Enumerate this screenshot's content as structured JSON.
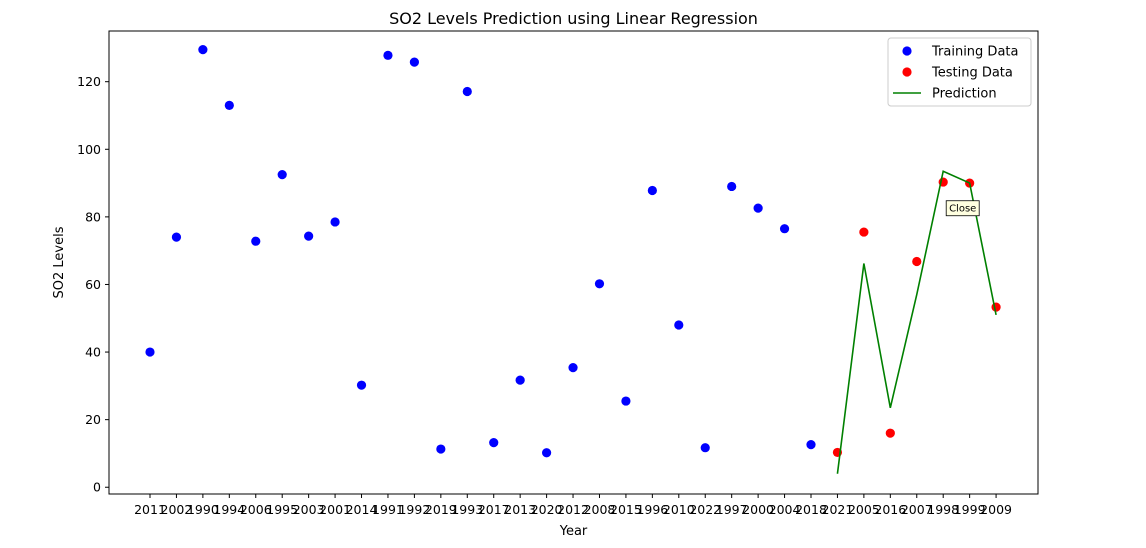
{
  "chart_data": {
    "type": "scatter",
    "title": "SO2 Levels Prediction using Linear Regression",
    "xlabel": "Year",
    "ylabel": "SO2 Levels",
    "categories": [
      "2011",
      "2002",
      "1990",
      "1994",
      "2006",
      "1995",
      "2003",
      "2001",
      "2014",
      "1991",
      "1992",
      "2019",
      "1993",
      "2017",
      "2013",
      "2020",
      "2012",
      "2008",
      "2015",
      "1996",
      "2010",
      "2022",
      "1997",
      "2000",
      "2004",
      "2018",
      "2021",
      "2005",
      "2016",
      "2007",
      "1998",
      "1999",
      "2009"
    ],
    "ylim": [
      -2,
      135
    ],
    "yticks": [
      0,
      20,
      40,
      60,
      80,
      100,
      120
    ],
    "grid": false,
    "legend_position": "top-right",
    "series": [
      {
        "name": "Training Data",
        "kind": "scatter",
        "color": "#0000ff",
        "points": [
          {
            "x": "2011",
            "y": 40
          },
          {
            "x": "2002",
            "y": 74
          },
          {
            "x": "1990",
            "y": 129.5
          },
          {
            "x": "1994",
            "y": 113
          },
          {
            "x": "2006",
            "y": 72.8
          },
          {
            "x": "1995",
            "y": 92.5
          },
          {
            "x": "2003",
            "y": 74.3
          },
          {
            "x": "2001",
            "y": 78.5
          },
          {
            "x": "2014",
            "y": 30.2
          },
          {
            "x": "1991",
            "y": 127.8
          },
          {
            "x": "1992",
            "y": 125.8
          },
          {
            "x": "2019",
            "y": 11.3
          },
          {
            "x": "1993",
            "y": 117.1
          },
          {
            "x": "2017",
            "y": 13.2
          },
          {
            "x": "2013",
            "y": 31.7
          },
          {
            "x": "2020",
            "y": 10.2
          },
          {
            "x": "2012",
            "y": 35.4
          },
          {
            "x": "2008",
            "y": 60.2
          },
          {
            "x": "2015",
            "y": 25.5
          },
          {
            "x": "1996",
            "y": 87.8
          },
          {
            "x": "2010",
            "y": 48
          },
          {
            "x": "2022",
            "y": 11.7
          },
          {
            "x": "1997",
            "y": 89
          },
          {
            "x": "2000",
            "y": 82.6
          },
          {
            "x": "2004",
            "y": 76.5
          },
          {
            "x": "2018",
            "y": 12.6
          }
        ]
      },
      {
        "name": "Testing Data",
        "kind": "scatter",
        "color": "#ff0000",
        "points": [
          {
            "x": "2021",
            "y": 10.3
          },
          {
            "x": "2005",
            "y": 75.5
          },
          {
            "x": "2016",
            "y": 16
          },
          {
            "x": "2007",
            "y": 66.8
          },
          {
            "x": "1998",
            "y": 90.3
          },
          {
            "x": "1999",
            "y": 90
          },
          {
            "x": "2009",
            "y": 53.3
          }
        ]
      },
      {
        "name": "Prediction",
        "kind": "line",
        "color": "#008000",
        "points": [
          {
            "x": "2021",
            "y": 4
          },
          {
            "x": "2005",
            "y": 66.2
          },
          {
            "x": "2016",
            "y": 23.5
          },
          {
            "x": "2007",
            "y": 57
          },
          {
            "x": "1998",
            "y": 93.5
          },
          {
            "x": "1999",
            "y": 90
          },
          {
            "x": "2009",
            "y": 51
          }
        ]
      }
    ],
    "annotations": [
      {
        "text": "Close",
        "x": "1998",
        "y": 83
      }
    ]
  }
}
